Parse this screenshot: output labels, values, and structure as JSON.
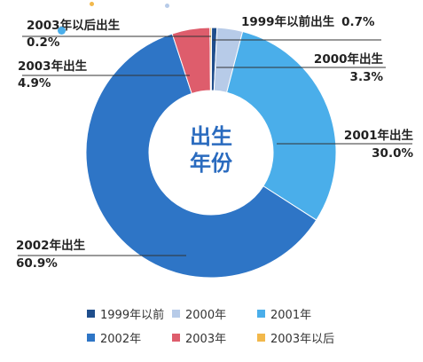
{
  "chart_data": {
    "type": "pie",
    "donut": true,
    "center_label": [
      "出生",
      "年份"
    ],
    "slices": [
      {
        "name": "1999年以前",
        "value": 0.7,
        "label": "1999年以前出生",
        "pct_text": "0.7%",
        "color": "#1f4e8c"
      },
      {
        "name": "2000年",
        "value": 3.3,
        "label": "2000年出生",
        "pct_text": "3.3%",
        "color": "#b7cbe8"
      },
      {
        "name": "2001年",
        "value": 30.0,
        "label": "2001年出生",
        "pct_text": "30.0%",
        "color": "#4aaeea"
      },
      {
        "name": "2002年",
        "value": 60.9,
        "label": "2002年出生",
        "pct_text": "60.9%",
        "color": "#2e75c6"
      },
      {
        "name": "2003年",
        "value": 4.9,
        "label": "2003年出生",
        "pct_text": "4.9%",
        "color": "#de5d6c"
      },
      {
        "name": "2003年以后",
        "value": 0.2,
        "label": "2003年以后出生",
        "pct_text": "0.2%",
        "color": "#f2b84b"
      }
    ],
    "legend_position": "bottom"
  }
}
